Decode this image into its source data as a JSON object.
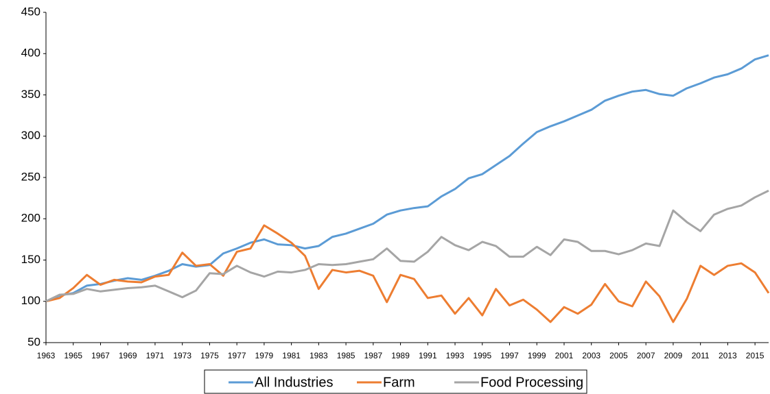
{
  "chart_data": {
    "type": "line",
    "x": [
      1963,
      1964,
      1965,
      1966,
      1967,
      1968,
      1969,
      1970,
      1971,
      1972,
      1973,
      1974,
      1975,
      1976,
      1977,
      1978,
      1979,
      1980,
      1981,
      1982,
      1983,
      1984,
      1985,
      1986,
      1987,
      1988,
      1989,
      1990,
      1991,
      1992,
      1993,
      1994,
      1995,
      1996,
      1997,
      1998,
      1999,
      2000,
      2001,
      2002,
      2003,
      2004,
      2005,
      2006,
      2007,
      2008,
      2009,
      2010,
      2011,
      2012,
      2013,
      2014,
      2015,
      2016
    ],
    "xlim": [
      1963,
      2016
    ],
    "xticks": [
      1963,
      1965,
      1967,
      1969,
      1971,
      1973,
      1975,
      1977,
      1979,
      1981,
      1983,
      1985,
      1987,
      1989,
      1991,
      1993,
      1995,
      1997,
      1999,
      2001,
      2003,
      2005,
      2007,
      2009,
      2011,
      2013,
      2015
    ],
    "ylim": [
      50,
      450
    ],
    "yticks": [
      50,
      100,
      150,
      200,
      250,
      300,
      350,
      400,
      450
    ],
    "grid": false,
    "legend": "bottom",
    "series": [
      {
        "name": "All Industries",
        "color": "#5b9bd5",
        "values": [
          100,
          107,
          110,
          119,
          121,
          125,
          128,
          126,
          131,
          137,
          145,
          142,
          144,
          158,
          164,
          171,
          175,
          169,
          168,
          164,
          167,
          178,
          182,
          188,
          194,
          205,
          210,
          213,
          215,
          227,
          236,
          249,
          254,
          265,
          276,
          291,
          305,
          312,
          318,
          325,
          332,
          343,
          349,
          354,
          356,
          351,
          349,
          358,
          364,
          371,
          375,
          382,
          393,
          398
        ]
      },
      {
        "name": "Farm",
        "color": "#ed7d31",
        "values": [
          100,
          104,
          116,
          132,
          120,
          126,
          124,
          123,
          130,
          132,
          159,
          143,
          145,
          131,
          160,
          164,
          192,
          182,
          171,
          155,
          115,
          138,
          135,
          137,
          131,
          99,
          132,
          127,
          104,
          107,
          85,
          104,
          83,
          115,
          95,
          102,
          90,
          75,
          93,
          85,
          96,
          121,
          100,
          94,
          124,
          106,
          75,
          103,
          143,
          132,
          143,
          146,
          135,
          110
        ]
      },
      {
        "name": "Food Processing",
        "color": "#a5a5a5",
        "values": [
          100,
          108,
          109,
          115,
          112,
          114,
          116,
          117,
          119,
          112,
          105,
          113,
          134,
          133,
          143,
          135,
          130,
          136,
          135,
          138,
          145,
          144,
          145,
          148,
          151,
          164,
          149,
          148,
          160,
          178,
          168,
          162,
          172,
          167,
          154,
          154,
          166,
          156,
          175,
          172,
          161,
          161,
          157,
          162,
          170,
          167,
          210,
          196,
          185,
          205,
          212,
          216,
          226,
          234
        ]
      }
    ]
  }
}
